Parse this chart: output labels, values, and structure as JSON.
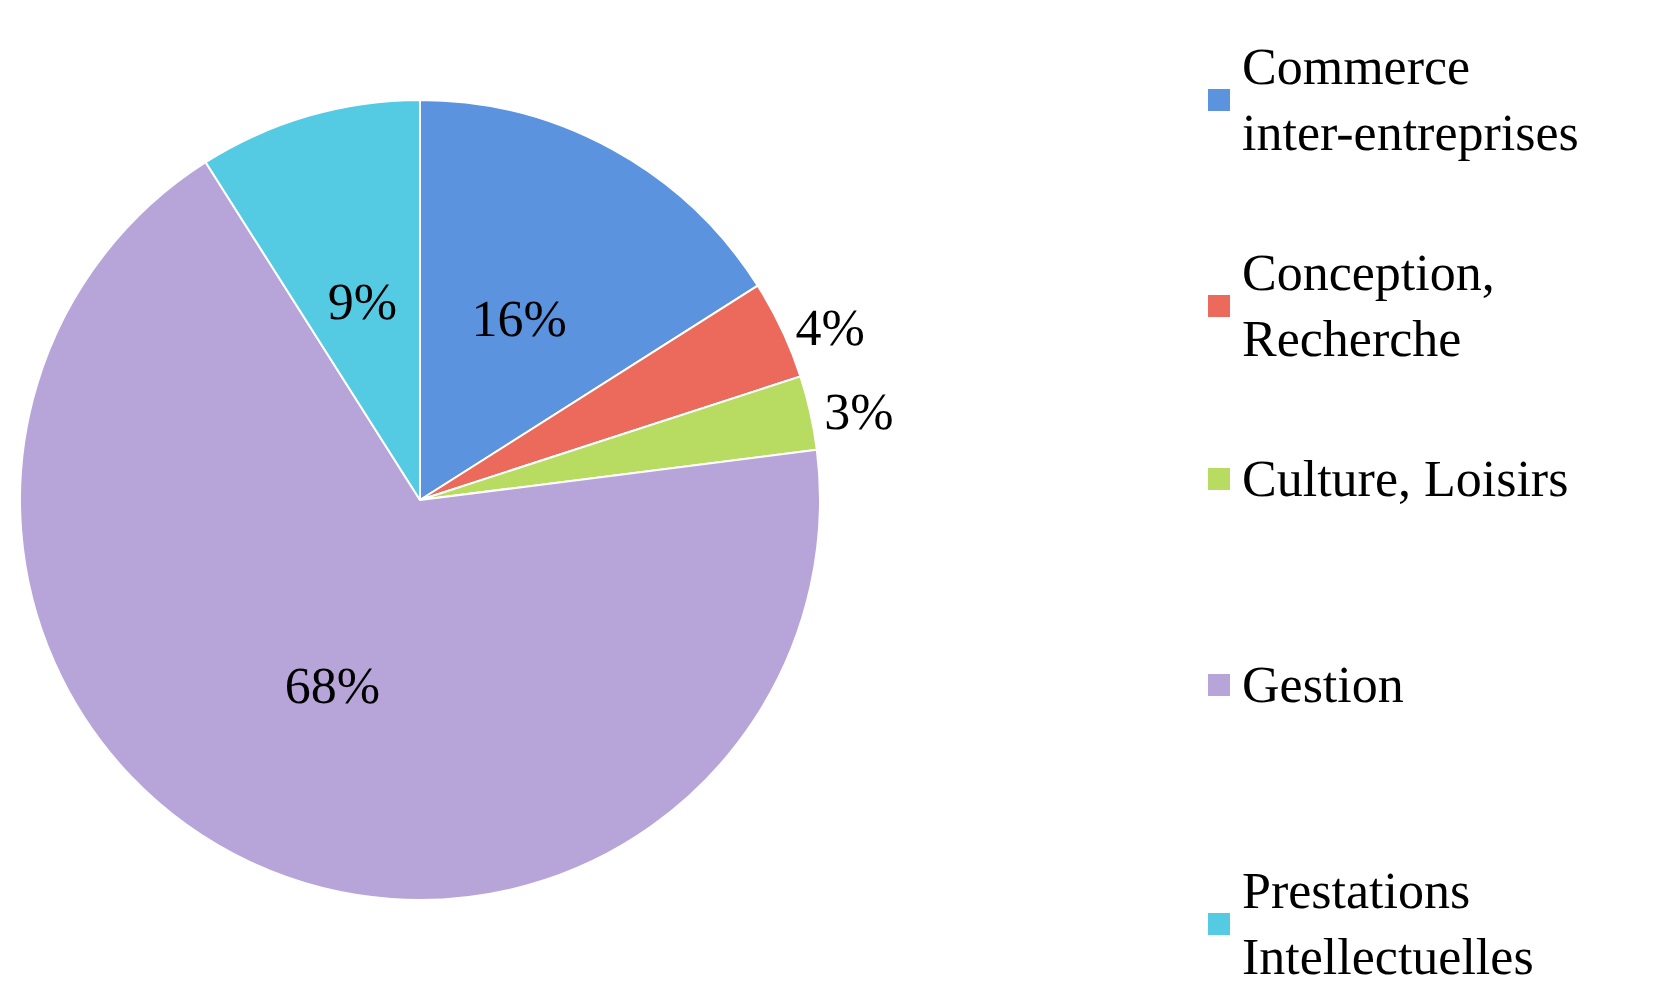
{
  "chart_data": {
    "type": "pie",
    "categories": [
      "Commerce inter-entreprises",
      "Conception, Recherche",
      "Culture, Loisirs",
      "Gestion",
      "Prestations Intellectuelles"
    ],
    "values": [
      16,
      4,
      3,
      68,
      9
    ],
    "colors": [
      "#5b93de",
      "#ec6a5c",
      "#b8dc62",
      "#b7a5da",
      "#54cbe3"
    ],
    "value_labels": [
      "16%",
      "4%",
      "3%",
      "68%",
      "9%"
    ],
    "legend": "right"
  }
}
